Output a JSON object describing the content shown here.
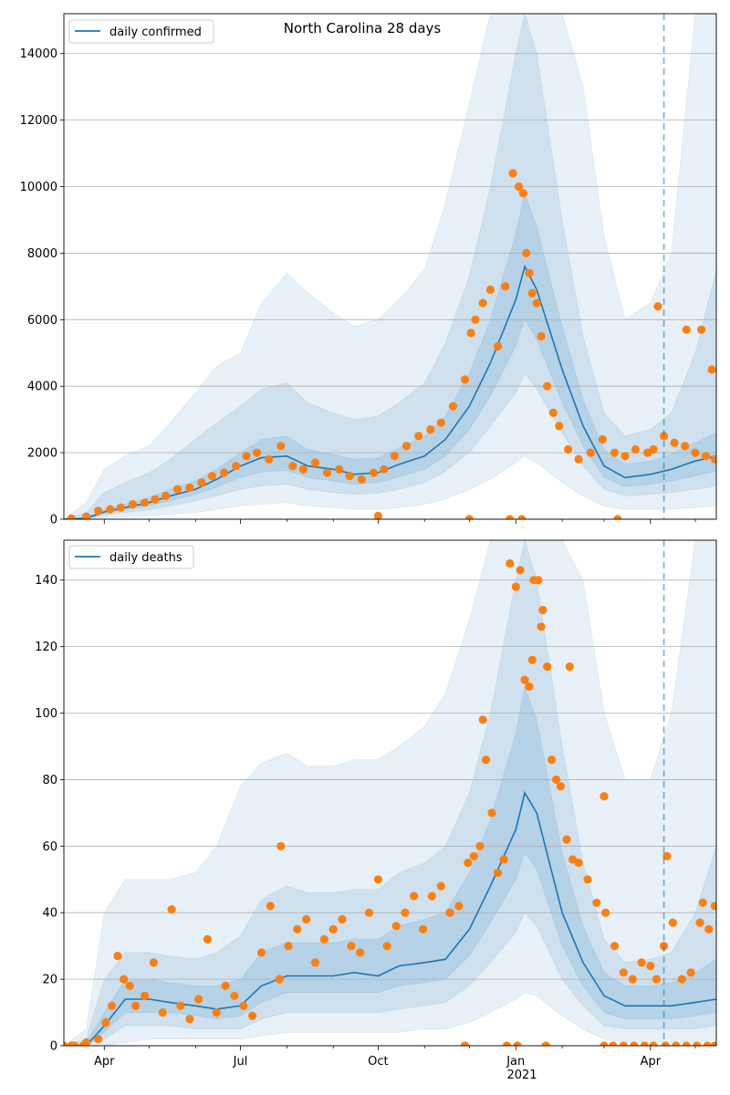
{
  "figure": {
    "title": "North Carolina 28 days"
  },
  "colors": {
    "line": "#1f77b4",
    "points": "#ff7f0e",
    "band": "#1f77b4",
    "grid": "#b0b0b0",
    "vline": "#1f77b4"
  },
  "x_axis": {
    "ticks": [
      {
        "date": "2020-04-01",
        "label": "Apr"
      },
      {
        "date": "2020-07-01",
        "label": "Jul"
      },
      {
        "date": "2020-10-01",
        "label": "Oct"
      },
      {
        "date": "2021-01-01",
        "label": "Jan"
      },
      {
        "date": "2021-04-01",
        "label": "Apr"
      }
    ],
    "year_label": "2021",
    "minor_ticks": [
      "2020-05-01",
      "2020-06-01",
      "2020-08-01",
      "2020-09-01",
      "2020-11-01",
      "2020-12-01",
      "2021-02-01",
      "2021-03-01",
      "2021-05-01"
    ],
    "range": [
      "2020-03-05",
      "2021-05-15"
    ],
    "forecast_start": "2021-04-10"
  },
  "chart_data": [
    {
      "type": "line",
      "panel": "top",
      "title": "North Carolina 28 days",
      "legend": "top-left",
      "grid": true,
      "ylim": [
        0,
        15200
      ],
      "yticks": [
        0,
        2000,
        4000,
        6000,
        8000,
        10000,
        12000,
        14000
      ],
      "series": [
        {
          "name": "daily confirmed",
          "x": [
            "2020-03-05",
            "2020-03-20",
            "2020-04-01",
            "2020-04-15",
            "2020-05-01",
            "2020-05-15",
            "2020-06-01",
            "2020-06-15",
            "2020-07-01",
            "2020-07-15",
            "2020-08-01",
            "2020-08-15",
            "2020-09-01",
            "2020-09-15",
            "2020-10-01",
            "2020-10-15",
            "2020-11-01",
            "2020-11-15",
            "2020-12-01",
            "2020-12-15",
            "2021-01-01",
            "2021-01-07",
            "2021-01-15",
            "2021-02-01",
            "2021-02-15",
            "2021-03-01",
            "2021-03-15",
            "2021-04-01",
            "2021-04-15",
            "2021-05-01",
            "2021-05-15"
          ],
          "y": [
            0,
            30,
            220,
            350,
            500,
            700,
            900,
            1200,
            1600,
            1850,
            1900,
            1600,
            1500,
            1350,
            1400,
            1650,
            1900,
            2400,
            3400,
            4700,
            6600,
            7600,
            6900,
            4500,
            2800,
            1600,
            1250,
            1350,
            1500,
            1750,
            1900
          ]
        }
      ],
      "bands": {
        "x": [
          "2020-03-05",
          "2020-03-20",
          "2020-04-01",
          "2020-04-15",
          "2020-05-01",
          "2020-05-15",
          "2020-06-01",
          "2020-06-15",
          "2020-07-01",
          "2020-07-15",
          "2020-08-01",
          "2020-08-15",
          "2020-09-01",
          "2020-09-15",
          "2020-10-01",
          "2020-10-15",
          "2020-11-01",
          "2020-11-15",
          "2020-12-01",
          "2020-12-15",
          "2021-01-01",
          "2021-01-07",
          "2021-01-15",
          "2021-02-01",
          "2021-02-15",
          "2021-03-01",
          "2021-03-15",
          "2021-04-01",
          "2021-04-15",
          "2021-05-01",
          "2021-05-15"
        ],
        "outer_low": [
          0,
          0,
          50,
          80,
          100,
          150,
          200,
          300,
          400,
          450,
          500,
          400,
          350,
          300,
          300,
          350,
          450,
          600,
          900,
          1200,
          1700,
          1900,
          1700,
          1100,
          700,
          400,
          300,
          300,
          300,
          350,
          400
        ],
        "outer_high": [
          0,
          500,
          1500,
          1900,
          2200,
          2900,
          3800,
          4600,
          5000,
          6500,
          7400,
          6800,
          6200,
          5800,
          6000,
          6600,
          7500,
          9500,
          12500,
          15200,
          15200,
          15200,
          15200,
          15200,
          13000,
          8500,
          6000,
          6500,
          8000,
          15200,
          15200
        ],
        "mid_low": [
          0,
          10,
          120,
          200,
          280,
          400,
          550,
          700,
          900,
          1000,
          1050,
          900,
          800,
          750,
          780,
          900,
          1100,
          1450,
          2000,
          2800,
          3800,
          4400,
          3900,
          2600,
          1600,
          900,
          700,
          750,
          800,
          900,
          1000
        ],
        "mid_high": [
          0,
          200,
          800,
          1100,
          1400,
          1800,
          2400,
          2900,
          3400,
          3900,
          4100,
          3500,
          3200,
          3000,
          3100,
          3500,
          4100,
          5300,
          7300,
          10000,
          14000,
          15200,
          14000,
          9000,
          5500,
          3200,
          2500,
          2700,
          3200,
          5000,
          7500
        ],
        "inner_low": [
          0,
          20,
          170,
          280,
          400,
          560,
          740,
          960,
          1250,
          1420,
          1470,
          1250,
          1150,
          1050,
          1100,
          1280,
          1500,
          1900,
          2700,
          3700,
          5200,
          6000,
          5400,
          3500,
          2200,
          1250,
          980,
          1050,
          1150,
          1300,
          1450
        ],
        "inner_high": [
          0,
          50,
          300,
          450,
          650,
          900,
          1150,
          1500,
          2000,
          2400,
          2500,
          2100,
          1950,
          1800,
          1850,
          2150,
          2500,
          3100,
          4400,
          6000,
          8600,
          9800,
          8800,
          5800,
          3600,
          2100,
          1650,
          1750,
          1950,
          2300,
          2600
        ]
      },
      "scatter": {
        "x": [
          "2020-03-10",
          "2020-03-20",
          "2020-03-28",
          "2020-04-05",
          "2020-04-12",
          "2020-04-20",
          "2020-04-28",
          "2020-05-05",
          "2020-05-12",
          "2020-05-20",
          "2020-05-28",
          "2020-06-05",
          "2020-06-12",
          "2020-06-20",
          "2020-06-28",
          "2020-07-05",
          "2020-07-12",
          "2020-07-20",
          "2020-07-28",
          "2020-08-05",
          "2020-08-12",
          "2020-08-20",
          "2020-08-28",
          "2020-09-05",
          "2020-09-12",
          "2020-09-20",
          "2020-09-28",
          "2020-10-05",
          "2020-10-12",
          "2020-10-20",
          "2020-10-28",
          "2020-11-05",
          "2020-11-12",
          "2020-11-20",
          "2020-11-28",
          "2020-12-02",
          "2020-12-05",
          "2020-12-10",
          "2020-12-15",
          "2020-12-20",
          "2020-12-25",
          "2020-12-30",
          "2021-01-03",
          "2021-01-06",
          "2021-01-08",
          "2021-01-10",
          "2021-01-12",
          "2021-01-15",
          "2021-01-18",
          "2021-01-22",
          "2021-01-26",
          "2021-01-30",
          "2021-02-05",
          "2021-02-12",
          "2021-02-20",
          "2021-02-28",
          "2021-03-08",
          "2021-03-15",
          "2021-03-22",
          "2021-03-30",
          "2021-04-03",
          "2021-04-06",
          "2021-04-10",
          "2021-04-17",
          "2021-04-24",
          "2021-05-01",
          "2021-05-08",
          "2021-05-14",
          "2020-10-01",
          "2020-12-01",
          "2020-12-28",
          "2021-01-05",
          "2021-03-10",
          "2021-04-25",
          "2021-05-05",
          "2021-05-12"
        ],
        "y": [
          20,
          80,
          250,
          300,
          350,
          450,
          500,
          600,
          700,
          900,
          950,
          1100,
          1300,
          1400,
          1600,
          1900,
          2000,
          1800,
          2200,
          1600,
          1500,
          1700,
          1400,
          1500,
          1300,
          1200,
          1400,
          1500,
          1900,
          2200,
          2500,
          2700,
          2900,
          3400,
          4200,
          5600,
          6000,
          6500,
          6900,
          5200,
          7000,
          10400,
          10000,
          9800,
          8000,
          7400,
          6800,
          6500,
          5500,
          4000,
          3200,
          2800,
          2100,
          1800,
          2000,
          2400,
          2000,
          1900,
          2100,
          2000,
          2100,
          6400,
          2500,
          2300,
          2200,
          2000,
          1900,
          1800,
          100,
          0,
          0,
          0,
          0,
          5700,
          5700,
          4500
        ]
      }
    },
    {
      "type": "line",
      "panel": "bottom",
      "legend": "top-left",
      "grid": true,
      "ylim": [
        0,
        152
      ],
      "yticks": [
        0,
        20,
        40,
        60,
        80,
        100,
        120,
        140
      ],
      "series": [
        {
          "name": "daily deaths",
          "x": [
            "2020-03-05",
            "2020-03-20",
            "2020-04-01",
            "2020-04-15",
            "2020-05-01",
            "2020-05-15",
            "2020-06-01",
            "2020-06-15",
            "2020-07-01",
            "2020-07-15",
            "2020-08-01",
            "2020-08-15",
            "2020-09-01",
            "2020-09-15",
            "2020-10-01",
            "2020-10-15",
            "2020-11-01",
            "2020-11-15",
            "2020-12-01",
            "2020-12-15",
            "2021-01-01",
            "2021-01-07",
            "2021-01-15",
            "2021-02-01",
            "2021-02-15",
            "2021-03-01",
            "2021-03-15",
            "2021-04-01",
            "2021-04-15",
            "2021-05-01",
            "2021-05-15"
          ],
          "y": [
            0,
            0,
            6,
            14,
            14,
            13,
            12,
            11,
            12,
            18,
            21,
            21,
            21,
            22,
            21,
            24,
            25,
            26,
            35,
            48,
            65,
            76,
            70,
            40,
            25,
            15,
            12,
            12,
            12,
            13,
            14
          ]
        }
      ],
      "bands": {
        "x": [
          "2020-03-05",
          "2020-03-20",
          "2020-04-01",
          "2020-04-15",
          "2020-05-01",
          "2020-05-15",
          "2020-06-01",
          "2020-06-15",
          "2020-07-01",
          "2020-07-15",
          "2020-08-01",
          "2020-08-15",
          "2020-09-01",
          "2020-09-15",
          "2020-10-01",
          "2020-10-15",
          "2020-11-01",
          "2020-11-15",
          "2020-12-01",
          "2020-12-15",
          "2021-01-01",
          "2021-01-07",
          "2021-01-15",
          "2021-02-01",
          "2021-02-15",
          "2021-03-01",
          "2021-03-15",
          "2021-04-01",
          "2021-04-15",
          "2021-05-01",
          "2021-05-15"
        ],
        "outer_low": [
          0,
          0,
          0,
          1,
          2,
          2,
          2,
          2,
          2,
          3,
          4,
          4,
          4,
          4,
          4,
          4,
          5,
          5,
          7,
          10,
          14,
          16,
          15,
          9,
          5,
          2,
          1,
          1,
          1,
          1,
          2
        ],
        "outer_high": [
          0,
          5,
          40,
          50,
          50,
          50,
          52,
          60,
          78,
          85,
          88,
          84,
          84,
          86,
          86,
          90,
          96,
          106,
          128,
          152,
          152,
          152,
          152,
          152,
          140,
          100,
          80,
          80,
          100,
          152,
          152
        ],
        "mid_low": [
          0,
          0,
          2,
          6,
          6,
          6,
          5,
          5,
          5,
          8,
          10,
          10,
          10,
          10,
          10,
          11,
          12,
          13,
          18,
          25,
          34,
          40,
          36,
          20,
          12,
          6,
          5,
          5,
          5,
          5,
          6
        ],
        "mid_high": [
          0,
          2,
          20,
          28,
          28,
          27,
          26,
          28,
          33,
          44,
          48,
          46,
          46,
          47,
          47,
          52,
          55,
          60,
          76,
          100,
          140,
          152,
          140,
          90,
          55,
          32,
          25,
          26,
          28,
          40,
          60
        ],
        "inner_low": [
          0,
          0,
          4,
          10,
          10,
          10,
          9,
          8,
          9,
          13,
          16,
          16,
          16,
          16,
          16,
          18,
          19,
          20,
          27,
          37,
          50,
          58,
          53,
          30,
          18,
          10,
          8,
          8,
          8,
          9,
          10
        ],
        "inner_high": [
          0,
          1,
          10,
          20,
          20,
          19,
          18,
          18,
          20,
          28,
          31,
          31,
          31,
          32,
          32,
          36,
          38,
          40,
          52,
          68,
          94,
          108,
          98,
          58,
          36,
          22,
          18,
          18,
          19,
          22,
          26
        ]
      },
      "scatter": {
        "x": [
          "2020-03-10",
          "2020-03-20",
          "2020-03-28",
          "2020-04-02",
          "2020-04-06",
          "2020-04-10",
          "2020-04-14",
          "2020-04-18",
          "2020-04-22",
          "2020-04-28",
          "2020-05-04",
          "2020-05-10",
          "2020-05-16",
          "2020-05-22",
          "2020-05-28",
          "2020-06-03",
          "2020-06-09",
          "2020-06-15",
          "2020-06-21",
          "2020-06-27",
          "2020-07-03",
          "2020-07-09",
          "2020-07-15",
          "2020-07-21",
          "2020-07-27",
          "2020-08-02",
          "2020-08-08",
          "2020-08-14",
          "2020-08-20",
          "2020-08-26",
          "2020-09-01",
          "2020-09-07",
          "2020-09-13",
          "2020-09-19",
          "2020-09-25",
          "2020-10-01",
          "2020-10-07",
          "2020-10-13",
          "2020-10-19",
          "2020-10-25",
          "2020-10-31",
          "2020-11-06",
          "2020-11-12",
          "2020-11-18",
          "2020-11-24",
          "2020-11-30",
          "2020-12-04",
          "2020-12-08",
          "2020-12-12",
          "2020-12-16",
          "2020-12-20",
          "2020-12-24",
          "2020-12-28",
          "2021-01-01",
          "2021-01-04",
          "2021-01-07",
          "2021-01-10",
          "2021-01-13",
          "2021-01-16",
          "2021-01-19",
          "2021-01-22",
          "2021-01-25",
          "2021-01-28",
          "2021-01-31",
          "2021-02-04",
          "2021-02-08",
          "2021-02-12",
          "2021-02-18",
          "2021-02-24",
          "2021-03-02",
          "2021-03-08",
          "2021-03-14",
          "2021-03-20",
          "2021-03-26",
          "2021-04-01",
          "2021-04-05",
          "2021-04-10",
          "2021-04-16",
          "2021-04-22",
          "2021-04-28",
          "2021-05-04",
          "2021-05-10",
          "2021-05-14",
          "2020-07-28",
          "2020-12-10",
          "2021-01-12",
          "2021-01-18",
          "2021-02-06",
          "2021-03-01",
          "2021-04-12",
          "2021-05-06"
        ],
        "y": [
          0,
          1,
          2,
          7,
          12,
          27,
          20,
          18,
          12,
          15,
          25,
          10,
          41,
          12,
          8,
          14,
          32,
          10,
          18,
          15,
          12,
          9,
          28,
          42,
          20,
          30,
          35,
          38,
          25,
          32,
          35,
          38,
          30,
          28,
          40,
          50,
          30,
          36,
          40,
          45,
          35,
          45,
          48,
          40,
          42,
          55,
          57,
          60,
          86,
          70,
          52,
          56,
          145,
          138,
          143,
          110,
          108,
          140,
          140,
          131,
          114,
          86,
          80,
          78,
          62,
          56,
          55,
          50,
          43,
          40,
          30,
          22,
          20,
          25,
          24,
          20,
          30,
          37,
          20,
          22,
          37,
          35,
          42,
          60,
          98,
          116,
          126,
          114,
          75,
          57,
          43
        ],
        "zeros": [
          "2020-03-05",
          "2020-03-12",
          "2020-03-18",
          "2020-11-28",
          "2020-12-26",
          "2021-01-02",
          "2021-01-21",
          "2021-03-01",
          "2021-03-07",
          "2021-03-14",
          "2021-03-21",
          "2021-03-28",
          "2021-04-03",
          "2021-04-11",
          "2021-04-18",
          "2021-04-25",
          "2021-05-02",
          "2021-05-09",
          "2021-05-14"
        ]
      }
    }
  ]
}
